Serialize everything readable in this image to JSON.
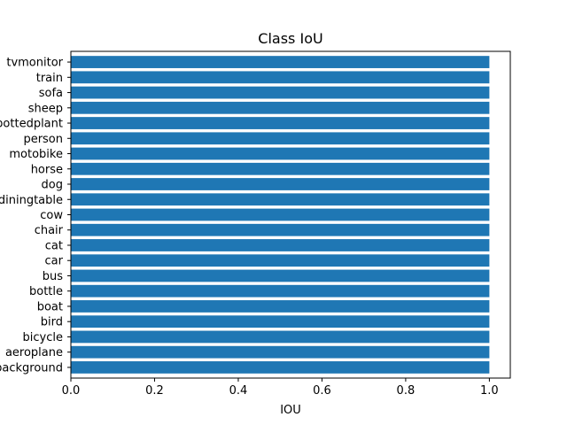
{
  "chart_data": {
    "type": "bar",
    "orientation": "horizontal",
    "title": "Class IoU",
    "xlabel": "IOU",
    "ylabel": "",
    "xlim": [
      0,
      1.05
    ],
    "xticks": [
      0.0,
      0.2,
      0.4,
      0.6,
      0.8,
      1.0
    ],
    "xtick_labels": [
      "0.0",
      "0.2",
      "0.4",
      "0.6",
      "0.8",
      "1.0"
    ],
    "categories": [
      "background",
      "aeroplane",
      "bicycle",
      "bird",
      "boat",
      "bottle",
      "bus",
      "car",
      "cat",
      "chair",
      "cow",
      "diningtable",
      "dog",
      "horse",
      "motobike",
      "person",
      "pottedplant",
      "sheep",
      "sofa",
      "train",
      "tvmonitor"
    ],
    "values": [
      1.0,
      1.0,
      1.0,
      1.0,
      1.0,
      1.0,
      1.0,
      1.0,
      1.0,
      1.0,
      1.0,
      1.0,
      1.0,
      1.0,
      1.0,
      1.0,
      1.0,
      1.0,
      1.0,
      1.0,
      1.0
    ],
    "bar_color": "#1f77b4",
    "grid": false,
    "legend": "none"
  }
}
